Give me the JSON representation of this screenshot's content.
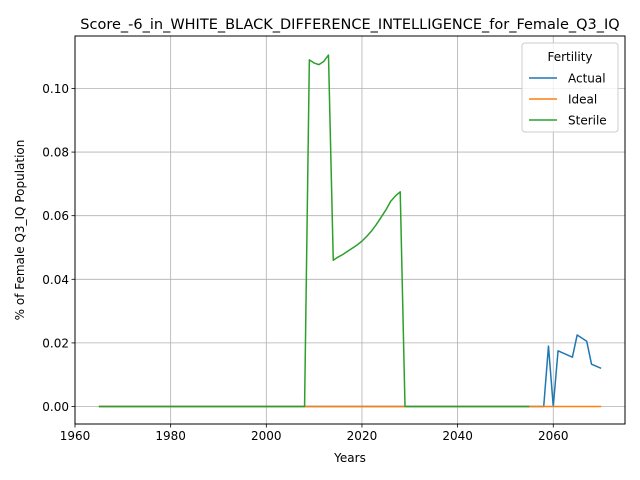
{
  "chart_data": {
    "type": "line",
    "title": "Score_-6_in_WHITE_BLACK_DIFFERENCE_INTELLIGENCE_for_Female_Q3_IQ",
    "xlabel": "Years",
    "ylabel": "% of Female Q3_IQ Population",
    "xlim": [
      1960,
      2075
    ],
    "ylim": [
      -0.0055,
      0.1165
    ],
    "x_ticks": [
      1960,
      1980,
      2000,
      2020,
      2040,
      2060
    ],
    "x_tick_labels": [
      "1960",
      "1980",
      "2000",
      "2020",
      "2040",
      "2060"
    ],
    "y_ticks": [
      0.0,
      0.02,
      0.04,
      0.06,
      0.08,
      0.1
    ],
    "y_tick_labels": [
      "0.00",
      "0.02",
      "0.04",
      "0.06",
      "0.08",
      "0.10"
    ],
    "grid": true,
    "legend": {
      "title": "Fertility",
      "position": "top-right"
    },
    "series": [
      {
        "name": "Actual",
        "color": "#1f77b4",
        "x": [
          1965,
          1980,
          2000,
          2020,
          2040,
          2055,
          2058,
          2059,
          2060,
          2061,
          2064,
          2065,
          2066,
          2067,
          2068,
          2070
        ],
        "y": [
          0,
          0,
          0,
          0,
          0,
          0,
          0,
          0.019,
          0,
          0.0175,
          0.0155,
          0.0225,
          0.0215,
          0.0205,
          0.0133,
          0.012
        ]
      },
      {
        "name": "Ideal",
        "color": "#ff7f0e",
        "x": [
          1965,
          1980,
          2000,
          2020,
          2040,
          2060,
          2070
        ],
        "y": [
          0,
          0,
          0,
          0,
          0,
          0,
          0
        ]
      },
      {
        "name": "Sterile",
        "color": "#2ca02c",
        "x": [
          1965,
          1980,
          2000,
          2008,
          2009,
          2010,
          2011,
          2012,
          2013,
          2014,
          2015,
          2016,
          2017,
          2018,
          2019,
          2020,
          2021,
          2022,
          2023,
          2024,
          2025,
          2026,
          2027,
          2028,
          2029,
          2030,
          2040,
          2055
        ],
        "y": [
          0,
          0,
          0,
          0,
          0.109,
          0.108,
          0.1075,
          0.1085,
          0.1105,
          0.046,
          0.047,
          0.0478,
          0.0488,
          0.0498,
          0.0508,
          0.052,
          0.0535,
          0.0552,
          0.0572,
          0.0595,
          0.0618,
          0.0645,
          0.0662,
          0.0675,
          0.0,
          0,
          0,
          0
        ]
      }
    ]
  }
}
